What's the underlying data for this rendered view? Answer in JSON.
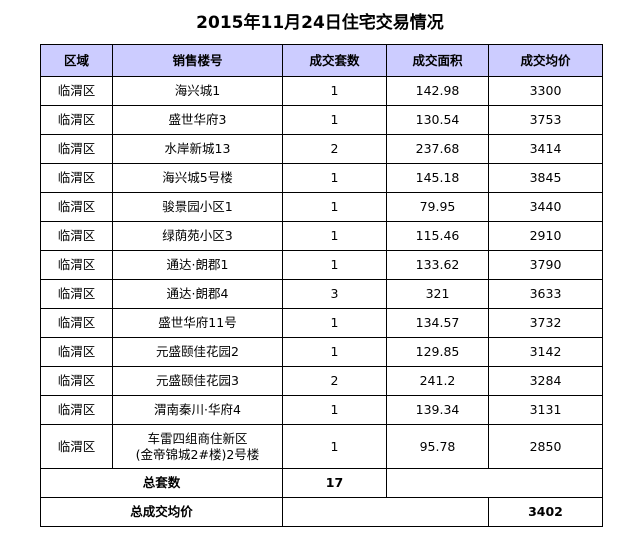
{
  "title": "2015年11月24日住宅交易情况",
  "table": {
    "header": [
      "区域",
      "销售楼号",
      "成交套数",
      "成交面积",
      "成交均价"
    ],
    "rows": [
      [
        "临渭区",
        "海兴城1",
        1,
        142.98,
        3300
      ],
      [
        "临渭区",
        "盛世华府3",
        1,
        130.54,
        3753
      ],
      [
        "临渭区",
        "水岸新城13",
        2,
        237.68,
        3414
      ],
      [
        "临渭区",
        "海兴城5号楼",
        1,
        145.18,
        3845
      ],
      [
        "临渭区",
        "骏景园小区1",
        1,
        79.95,
        3440
      ],
      [
        "临渭区",
        "绿荫苑小区3",
        1,
        115.46,
        2910
      ],
      [
        "临渭区",
        "通达·朗郡1",
        1,
        133.62,
        3790
      ],
      [
        "临渭区",
        "通达·朗郡4",
        3,
        321,
        3633
      ],
      [
        "临渭区",
        "盛世华府11号",
        1,
        134.57,
        3732
      ],
      [
        "临渭区",
        "元盛颐佳花园2",
        1,
        129.85,
        3142
      ],
      [
        "临渭区",
        "元盛颐佳花园3",
        2,
        241.2,
        3284
      ],
      [
        "临渭区",
        "渭南秦川·华府4",
        1,
        139.34,
        3131
      ],
      [
        "临渭区",
        [
          "车雷四组商住新区",
          "(金帝锦城2#楼)2号楼"
        ],
        1,
        95.78,
        2850
      ]
    ],
    "total_units": {
      "label": "总套数",
      "value": 17
    },
    "average_price": {
      "label": "总成交均价",
      "value": 3402
    }
  }
}
